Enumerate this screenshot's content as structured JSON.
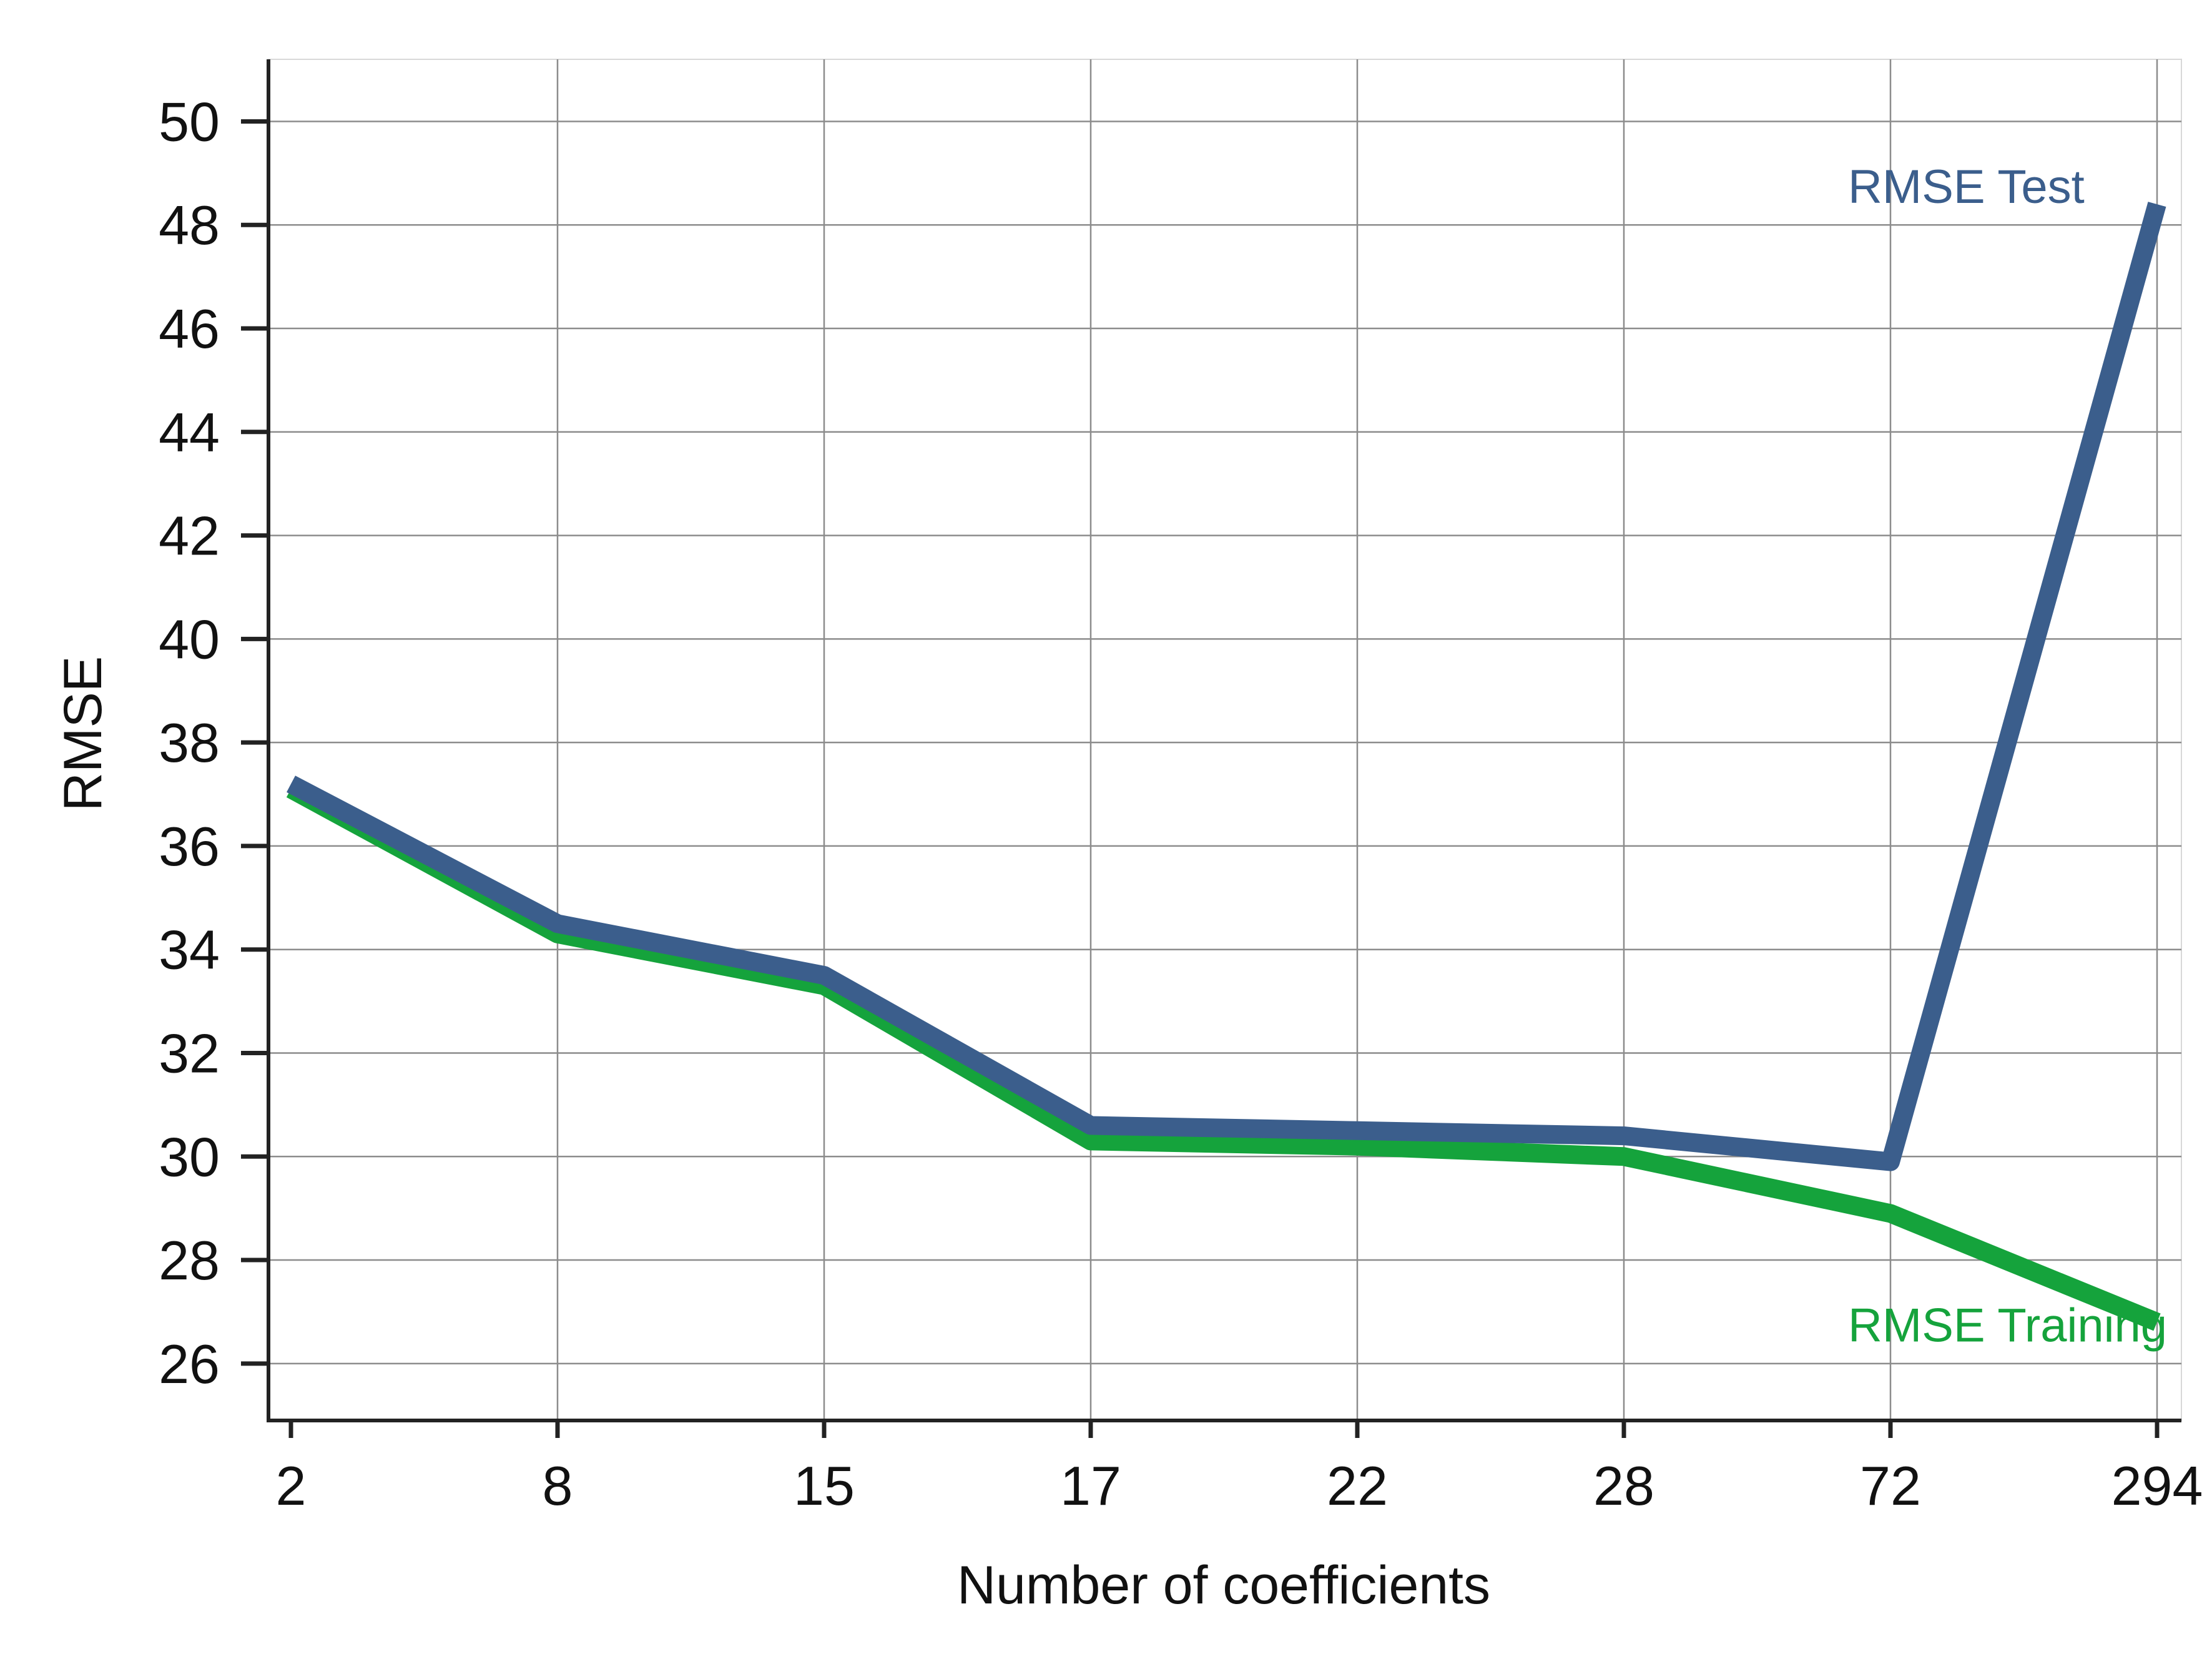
{
  "chart_data": {
    "type": "line",
    "title": "",
    "xlabel": "Number of coefficients",
    "ylabel": "RMSE",
    "categories": [
      "2",
      "8",
      "15",
      "17",
      "22",
      "28",
      "72",
      "294"
    ],
    "ylim": [
      24.9,
      51.2
    ],
    "yticks": [
      26,
      28,
      30,
      32,
      34,
      36,
      38,
      40,
      42,
      44,
      46,
      48,
      50
    ],
    "grid": true,
    "legend": "none (series labelled directly at right end of lines)",
    "series": [
      {
        "name": "RMSE Training",
        "color": "#15a33c",
        "values": [
          37.1,
          34.3,
          33.3,
          30.3,
          30.2,
          30.0,
          28.9,
          26.8
        ]
      },
      {
        "name": "RMSE Test",
        "color": "#3b5e8c",
        "values": [
          37.2,
          34.5,
          33.5,
          30.6,
          30.5,
          30.4,
          29.9,
          48.4
        ]
      }
    ]
  }
}
